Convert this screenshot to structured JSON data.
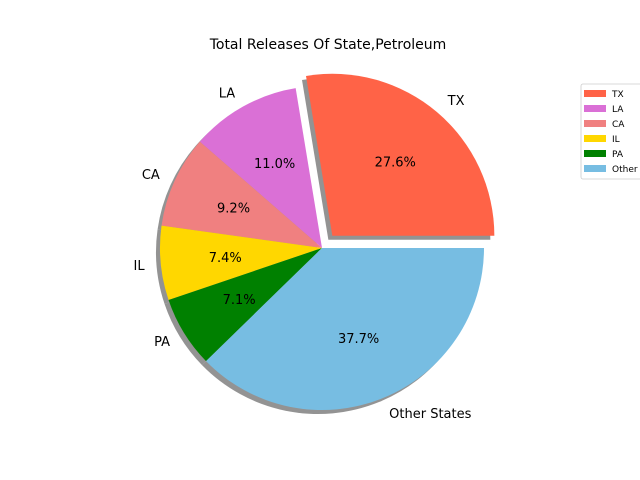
{
  "chart_data": {
    "type": "pie",
    "title": "Total Releases Of State,Petroleum",
    "slices": [
      {
        "label": "TX",
        "legend": "TX",
        "value": 27.6,
        "pct_text": "27.6%",
        "color": "#ff6347",
        "exploded": true
      },
      {
        "label": "LA",
        "legend": "LA",
        "value": 11.0,
        "pct_text": "11.0%",
        "color": "#da70d6",
        "exploded": false
      },
      {
        "label": "CA",
        "legend": "CA",
        "value": 9.2,
        "pct_text": "9.2%",
        "color": "#f08080",
        "exploded": false
      },
      {
        "label": "IL",
        "legend": "IL",
        "value": 7.4,
        "pct_text": "7.4%",
        "color": "#ffd700",
        "exploded": false
      },
      {
        "label": "PA",
        "legend": "PA",
        "value": 7.1,
        "pct_text": "7.1%",
        "color": "#008000",
        "exploded": false
      },
      {
        "label": "Other States",
        "legend": "Other",
        "value": 37.7,
        "pct_text": "37.7%",
        "color": "#77bde2",
        "exploded": false
      }
    ],
    "start_angle_deg": 0,
    "direction": "counterclockwise",
    "shadow": true,
    "legend_position": "right"
  }
}
